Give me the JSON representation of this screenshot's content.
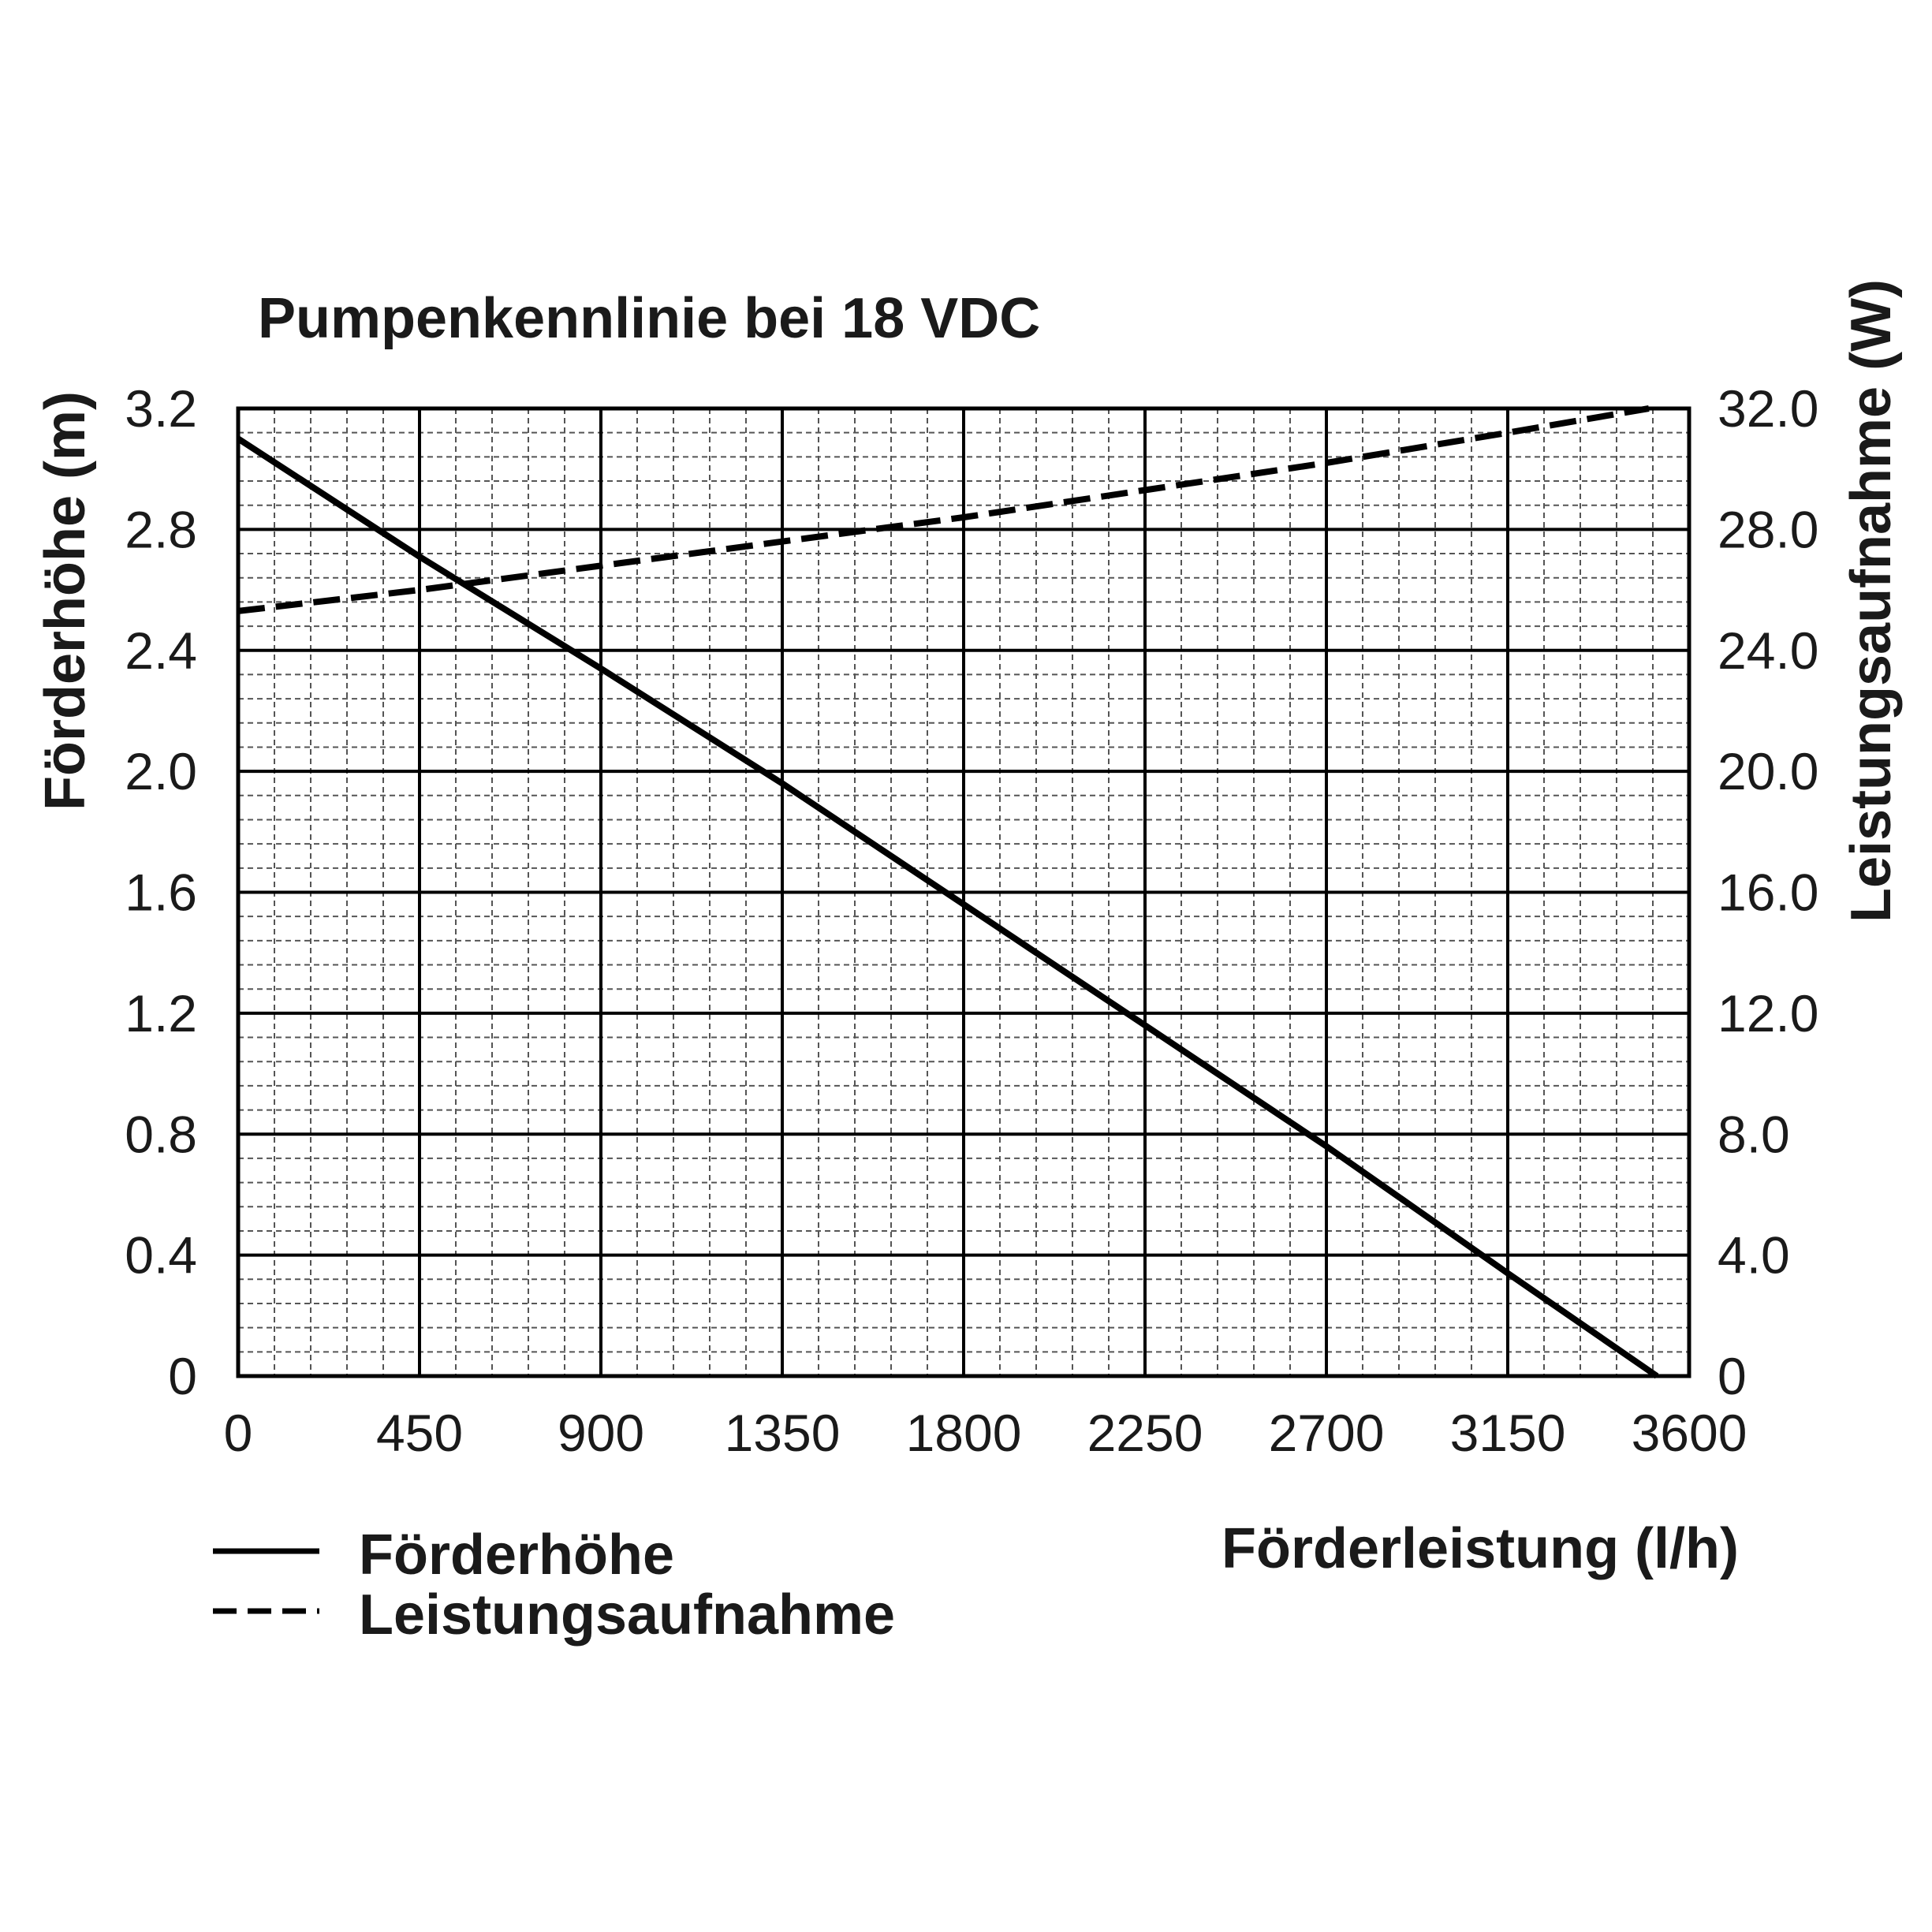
{
  "chart_data": {
    "type": "line",
    "title": "Pumpenkennlinie bei 18 VDC",
    "xlabel": "Förderleistung (l/h)",
    "ylabel_left": "Förderhöhe (m)",
    "ylabel_right": "Leistungsaufnahme (W)",
    "xlim": [
      0,
      3600
    ],
    "ylim_left": [
      0,
      3.2
    ],
    "ylim_right": [
      0,
      32.0
    ],
    "x_ticks": [
      "0",
      "450",
      "900",
      "1350",
      "1800",
      "2250",
      "2700",
      "3150",
      "3600"
    ],
    "y_ticks_left": [
      "0",
      "0.4",
      "0.8",
      "1.2",
      "1.6",
      "2.0",
      "2.4",
      "2.8",
      "3.2"
    ],
    "y_ticks_right": [
      "0",
      "4.0",
      "8.0",
      "12.0",
      "16.0",
      "20.0",
      "24.0",
      "28.0",
      "32.0"
    ],
    "grid": true,
    "legend_position": "bottom-left",
    "series": [
      {
        "name": "Förderhöhe",
        "axis": "left",
        "style": "solid",
        "color": "#000000",
        "x": [
          0,
          450,
          900,
          1350,
          1800,
          2250,
          2700,
          3150,
          3520
        ],
        "y": [
          3.1,
          2.71,
          2.34,
          1.96,
          1.56,
          1.16,
          0.76,
          0.34,
          0.0
        ]
      },
      {
        "name": "Leistungsaufnahme",
        "axis": "right",
        "style": "dashed",
        "color": "#000000",
        "x": [
          0,
          450,
          900,
          1350,
          1800,
          2250,
          2700,
          3150,
          3500
        ],
        "y": [
          25.3,
          26.0,
          26.8,
          27.6,
          28.4,
          29.3,
          30.2,
          31.2,
          32.0
        ]
      }
    ]
  }
}
